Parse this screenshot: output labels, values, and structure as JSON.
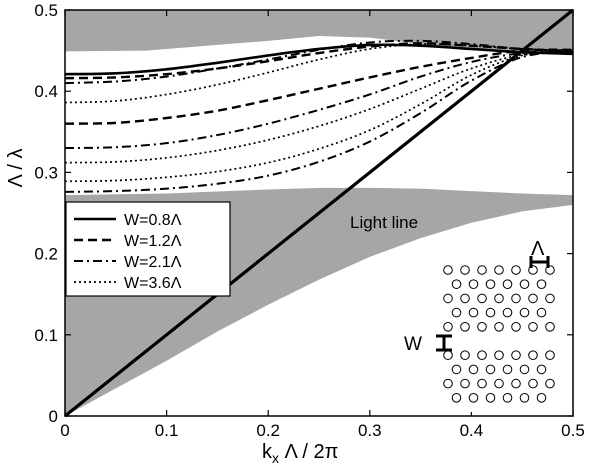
{
  "chart_data": {
    "type": "line",
    "title": "",
    "xlabel": "k",
    "xlabel_sub": "x",
    "xlabel_rest": " Λ / 2π",
    "ylabel": "Λ / λ",
    "xlim": [
      0,
      0.5
    ],
    "ylim": [
      0,
      0.5
    ],
    "x_ticks": [
      "0",
      "0.1",
      "0.2",
      "0.3",
      "0.4",
      "0.5"
    ],
    "y_ticks": [
      "0",
      "0.1",
      "0.2",
      "0.3",
      "0.4",
      "0.5"
    ],
    "grid": false,
    "legend_position": "left",
    "colors": {
      "band_fill": "#a6a6a6",
      "line": "#000000"
    },
    "shaded_regions": [
      {
        "name": "upper bulk band",
        "upper": [
          [
            0,
            0.5
          ],
          [
            0.5,
            0.5
          ]
        ],
        "lower": [
          [
            0,
            0.449
          ],
          [
            0.08,
            0.45
          ],
          [
            0.2,
            0.462
          ],
          [
            0.25,
            0.468
          ],
          [
            0.3,
            0.466
          ],
          [
            0.35,
            0.458
          ],
          [
            0.4,
            0.452
          ],
          [
            0.45,
            0.449
          ],
          [
            0.5,
            0.448
          ]
        ]
      },
      {
        "name": "lower bulk band",
        "upper": [
          [
            0,
            0.272
          ],
          [
            0.1,
            0.274
          ],
          [
            0.2,
            0.279
          ],
          [
            0.25,
            0.281
          ],
          [
            0.3,
            0.281
          ],
          [
            0.35,
            0.28
          ],
          [
            0.4,
            0.277
          ],
          [
            0.45,
            0.274
          ],
          [
            0.5,
            0.272
          ]
        ],
        "lower": [
          [
            0,
            0.0
          ],
          [
            0.1,
            0.068
          ],
          [
            0.15,
            0.104
          ],
          [
            0.2,
            0.137
          ],
          [
            0.25,
            0.168
          ],
          [
            0.3,
            0.196
          ],
          [
            0.35,
            0.219
          ],
          [
            0.4,
            0.238
          ],
          [
            0.45,
            0.252
          ],
          [
            0.5,
            0.26
          ]
        ]
      }
    ],
    "light_line": {
      "label": "Light line",
      "x": [
        0,
        0.5
      ],
      "y": [
        0,
        0.5
      ]
    },
    "series": [
      {
        "name": "W=0.8Λ",
        "style": "solid",
        "curves": [
          {
            "x": [
              0,
              0.05,
              0.1,
              0.15,
              0.2,
              0.25,
              0.3,
              0.35,
              0.4,
              0.45,
              0.5
            ],
            "y": [
              0.421,
              0.422,
              0.427,
              0.435,
              0.444,
              0.452,
              0.457,
              0.456,
              0.452,
              0.448,
              0.446
            ]
          }
        ]
      },
      {
        "name": "W=1.2Λ",
        "style": "dashed",
        "curves": [
          {
            "x": [
              0,
              0.05,
              0.1,
              0.15,
              0.2,
              0.25,
              0.3,
              0.35,
              0.4,
              0.45,
              0.5
            ],
            "y": [
              0.416,
              0.417,
              0.421,
              0.428,
              0.437,
              0.447,
              0.455,
              0.459,
              0.456,
              0.452,
              0.449
            ]
          },
          {
            "x": [
              0,
              0.05,
              0.1,
              0.15,
              0.2,
              0.25,
              0.3,
              0.35,
              0.4,
              0.45,
              0.5
            ],
            "y": [
              0.36,
              0.361,
              0.367,
              0.376,
              0.389,
              0.403,
              0.417,
              0.43,
              0.441,
              0.45,
              0.451
            ]
          }
        ]
      },
      {
        "name": "W=2.1Λ",
        "style": "dashdot",
        "curves": [
          {
            "x": [
              0,
              0.05,
              0.1,
              0.15,
              0.2,
              0.25,
              0.3,
              0.35,
              0.4,
              0.45,
              0.5
            ],
            "y": [
              0.41,
              0.412,
              0.418,
              0.428,
              0.439,
              0.451,
              0.46,
              0.462,
              0.458,
              0.452,
              0.45
            ]
          },
          {
            "x": [
              0,
              0.05,
              0.1,
              0.15,
              0.2,
              0.25,
              0.3,
              0.35,
              0.4,
              0.45,
              0.5
            ],
            "y": [
              0.33,
              0.331,
              0.336,
              0.346,
              0.36,
              0.377,
              0.396,
              0.418,
              0.436,
              0.447,
              0.45
            ]
          },
          {
            "x": [
              0,
              0.05,
              0.1,
              0.15,
              0.2,
              0.25,
              0.3,
              0.35,
              0.4,
              0.45,
              0.5
            ],
            "y": [
              0.276,
              0.277,
              0.28,
              0.286,
              0.296,
              0.313,
              0.338,
              0.373,
              0.413,
              0.442,
              0.45
            ]
          }
        ]
      },
      {
        "name": "W=3.6Λ",
        "style": "dotted",
        "curves": [
          {
            "x": [
              0,
              0.05,
              0.1,
              0.15,
              0.2,
              0.25,
              0.3,
              0.35,
              0.4,
              0.45,
              0.5
            ],
            "y": [
              0.386,
              0.388,
              0.396,
              0.408,
              0.423,
              0.439,
              0.452,
              0.458,
              0.456,
              0.452,
              0.45
            ]
          },
          {
            "x": [
              0,
              0.05,
              0.1,
              0.15,
              0.2,
              0.25,
              0.3,
              0.35,
              0.4,
              0.45,
              0.5
            ],
            "y": [
              0.312,
              0.313,
              0.318,
              0.327,
              0.34,
              0.357,
              0.378,
              0.403,
              0.428,
              0.445,
              0.449
            ]
          },
          {
            "x": [
              0,
              0.05,
              0.1,
              0.15,
              0.2,
              0.25,
              0.3,
              0.35,
              0.4,
              0.45,
              0.5
            ],
            "y": [
              0.289,
              0.29,
              0.294,
              0.301,
              0.312,
              0.329,
              0.352,
              0.384,
              0.42,
              0.444,
              0.449
            ]
          }
        ]
      }
    ],
    "inset": {
      "period_label": "Λ",
      "width_label": "W"
    }
  }
}
